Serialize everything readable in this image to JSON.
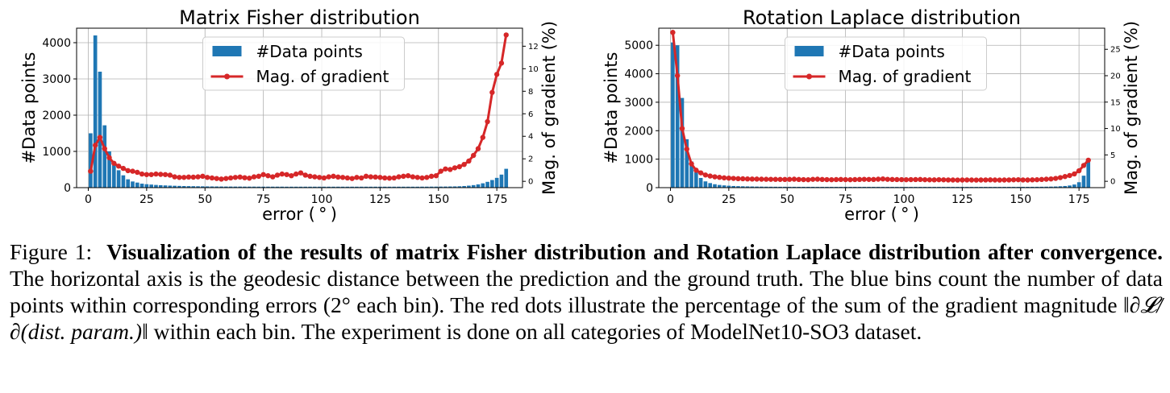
{
  "chart_data": [
    {
      "type": "bar",
      "title": "Matrix Fisher distribution",
      "xlabel": "error ( ° )",
      "ylabel": "#Data points",
      "y2label": "Mag. of gradient (%)",
      "xlim": [
        -5,
        186
      ],
      "ylim": [
        0,
        4400
      ],
      "y2lim": [
        -0.56,
        13.6
      ],
      "xticks": [
        0,
        25,
        50,
        75,
        100,
        125,
        150,
        175
      ],
      "yticks": [
        0,
        1000,
        2000,
        3000,
        4000
      ],
      "y2ticks": [
        0,
        2,
        4,
        6,
        8,
        10,
        12
      ],
      "grid": true,
      "legend_position": "top-center",
      "bar_width": 1.6,
      "colors": {
        "bars": "#1f77b4",
        "line": "#d62728"
      },
      "series": [
        {
          "name": "#Data points",
          "kind": "bar",
          "x": [
            1,
            3,
            5,
            7,
            9,
            11,
            13,
            15,
            17,
            19,
            21,
            23,
            25,
            27,
            29,
            31,
            33,
            35,
            37,
            39,
            41,
            43,
            45,
            47,
            49,
            51,
            53,
            55,
            57,
            59,
            61,
            63,
            65,
            67,
            69,
            71,
            73,
            75,
            77,
            79,
            81,
            83,
            85,
            87,
            89,
            91,
            93,
            95,
            97,
            99,
            101,
            103,
            105,
            107,
            109,
            111,
            113,
            115,
            117,
            119,
            121,
            123,
            125,
            127,
            129,
            131,
            133,
            135,
            137,
            139,
            141,
            143,
            145,
            147,
            149,
            151,
            153,
            155,
            157,
            159,
            161,
            163,
            165,
            167,
            169,
            171,
            173,
            175,
            177,
            179
          ],
          "values": [
            1500,
            4200,
            3200,
            1720,
            1000,
            700,
            480,
            340,
            230,
            170,
            140,
            110,
            95,
            85,
            75,
            68,
            62,
            56,
            52,
            48,
            44,
            42,
            40,
            38,
            36,
            34,
            33,
            32,
            31,
            30,
            30,
            29,
            29,
            28,
            28,
            28,
            27,
            27,
            27,
            27,
            27,
            27,
            26,
            26,
            26,
            26,
            26,
            26,
            26,
            26,
            26,
            26,
            26,
            26,
            26,
            26,
            26,
            26,
            26,
            26,
            26,
            26,
            26,
            26,
            26,
            26,
            26,
            26,
            26,
            26,
            26,
            27,
            27,
            28,
            28,
            29,
            30,
            32,
            34,
            38,
            45,
            55,
            70,
            90,
            120,
            160,
            210,
            270,
            360,
            520
          ]
        },
        {
          "name": "Mag. of gradient",
          "kind": "line",
          "x": [
            1,
            3,
            5,
            7,
            9,
            11,
            13,
            15,
            17,
            19,
            21,
            23,
            25,
            27,
            29,
            31,
            33,
            35,
            37,
            39,
            41,
            43,
            45,
            47,
            49,
            51,
            53,
            55,
            57,
            59,
            61,
            63,
            65,
            67,
            69,
            71,
            73,
            75,
            77,
            79,
            81,
            83,
            85,
            87,
            89,
            91,
            93,
            95,
            97,
            99,
            101,
            103,
            105,
            107,
            109,
            111,
            113,
            115,
            117,
            119,
            121,
            123,
            125,
            127,
            129,
            131,
            133,
            135,
            137,
            139,
            141,
            143,
            145,
            147,
            149,
            151,
            153,
            155,
            157,
            159,
            161,
            163,
            165,
            167,
            169,
            171,
            173,
            175,
            177,
            179
          ],
          "values": [
            0.9,
            3.2,
            3.9,
            2.9,
            2.1,
            1.6,
            1.35,
            1.15,
            0.95,
            0.9,
            0.8,
            0.65,
            0.6,
            0.6,
            0.65,
            0.62,
            0.6,
            0.55,
            0.4,
            0.35,
            0.35,
            0.38,
            0.37,
            0.4,
            0.45,
            0.35,
            0.3,
            0.25,
            0.2,
            0.25,
            0.3,
            0.35,
            0.38,
            0.32,
            0.28,
            0.4,
            0.45,
            0.6,
            0.5,
            0.4,
            0.55,
            0.65,
            0.6,
            0.5,
            0.65,
            0.75,
            0.55,
            0.45,
            0.4,
            0.35,
            0.3,
            0.4,
            0.45,
            0.38,
            0.35,
            0.3,
            0.25,
            0.35,
            0.3,
            0.45,
            0.4,
            0.38,
            0.35,
            0.3,
            0.28,
            0.3,
            0.4,
            0.45,
            0.5,
            0.4,
            0.35,
            0.3,
            0.35,
            0.45,
            0.5,
            0.9,
            1.1,
            1.05,
            1.2,
            1.3,
            1.5,
            1.8,
            2.3,
            2.9,
            3.9,
            5.3,
            7.9,
            9.5,
            10.5,
            13.0
          ]
        }
      ]
    },
    {
      "type": "bar",
      "title": "Rotation Laplace distribution",
      "xlabel": "error ( ° )",
      "ylabel": "#Data points",
      "y2label": "Mag. of gradient (%)",
      "xlim": [
        -5,
        186
      ],
      "ylim": [
        0,
        5600
      ],
      "y2lim": [
        -1.2,
        29
      ],
      "xticks": [
        0,
        25,
        50,
        75,
        100,
        125,
        150,
        175
      ],
      "yticks": [
        0,
        1000,
        2000,
        3000,
        4000,
        5000
      ],
      "y2ticks": [
        0,
        5,
        10,
        15,
        20,
        25
      ],
      "grid": true,
      "legend_position": "top-center",
      "bar_width": 1.6,
      "colors": {
        "bars": "#1f77b4",
        "line": "#d62728"
      },
      "series": [
        {
          "name": "#Data points",
          "kind": "bar",
          "x": [
            1,
            3,
            5,
            7,
            9,
            11,
            13,
            15,
            17,
            19,
            21,
            23,
            25,
            27,
            29,
            31,
            33,
            35,
            37,
            39,
            41,
            43,
            45,
            47,
            49,
            51,
            53,
            55,
            57,
            59,
            61,
            63,
            65,
            67,
            69,
            71,
            73,
            75,
            77,
            79,
            81,
            83,
            85,
            87,
            89,
            91,
            93,
            95,
            97,
            99,
            101,
            103,
            105,
            107,
            109,
            111,
            113,
            115,
            117,
            119,
            121,
            123,
            125,
            127,
            129,
            131,
            133,
            135,
            137,
            139,
            141,
            143,
            145,
            147,
            149,
            151,
            153,
            155,
            157,
            159,
            161,
            163,
            165,
            167,
            169,
            171,
            173,
            175,
            177,
            179
          ],
          "values": [
            5100,
            5000,
            3150,
            1700,
            920,
            540,
            340,
            220,
            160,
            120,
            95,
            80,
            68,
            58,
            52,
            47,
            43,
            40,
            37,
            35,
            33,
            32,
            31,
            30,
            30,
            29,
            29,
            28,
            28,
            28,
            28,
            27,
            27,
            27,
            27,
            27,
            27,
            27,
            27,
            27,
            27,
            27,
            27,
            27,
            27,
            26,
            26,
            26,
            26,
            26,
            26,
            26,
            26,
            26,
            26,
            26,
            26,
            26,
            26,
            26,
            26,
            26,
            26,
            26,
            26,
            26,
            26,
            26,
            26,
            26,
            26,
            27,
            27,
            27,
            27,
            28,
            28,
            29,
            30,
            31,
            33,
            36,
            40,
            48,
            58,
            75,
            110,
            190,
            420,
            1000
          ]
        },
        {
          "name": "Mag. of gradient",
          "kind": "line",
          "x": [
            1,
            3,
            5,
            7,
            9,
            11,
            13,
            15,
            17,
            19,
            21,
            23,
            25,
            27,
            29,
            31,
            33,
            35,
            37,
            39,
            41,
            43,
            45,
            47,
            49,
            51,
            53,
            55,
            57,
            59,
            61,
            63,
            65,
            67,
            69,
            71,
            73,
            75,
            77,
            79,
            81,
            83,
            85,
            87,
            89,
            91,
            93,
            95,
            97,
            99,
            101,
            103,
            105,
            107,
            109,
            111,
            113,
            115,
            117,
            119,
            121,
            123,
            125,
            127,
            129,
            131,
            133,
            135,
            137,
            139,
            141,
            143,
            145,
            147,
            149,
            151,
            153,
            155,
            157,
            159,
            161,
            163,
            165,
            167,
            169,
            171,
            173,
            175,
            177,
            179
          ],
          "values": [
            28.2,
            20.0,
            10.0,
            6.1,
            3.3,
            2.1,
            1.6,
            1.2,
            1.0,
            0.85,
            0.75,
            0.65,
            0.6,
            0.55,
            0.5,
            0.48,
            0.45,
            0.43,
            0.42,
            0.4,
            0.39,
            0.38,
            0.37,
            0.36,
            0.35,
            0.37,
            0.4,
            0.35,
            0.32,
            0.3,
            0.38,
            0.4,
            0.35,
            0.32,
            0.3,
            0.33,
            0.35,
            0.32,
            0.3,
            0.33,
            0.35,
            0.38,
            0.36,
            0.35,
            0.4,
            0.45,
            0.38,
            0.35,
            0.33,
            0.32,
            0.3,
            0.32,
            0.33,
            0.35,
            0.3,
            0.28,
            0.27,
            0.3,
            0.28,
            0.26,
            0.25,
            0.24,
            0.25,
            0.26,
            0.25,
            0.24,
            0.25,
            0.26,
            0.27,
            0.25,
            0.24,
            0.25,
            0.26,
            0.28,
            0.3,
            0.26,
            0.25,
            0.27,
            0.3,
            0.35,
            0.4,
            0.45,
            0.55,
            0.7,
            0.9,
            1.1,
            1.4,
            2.0,
            3.0,
            4.0
          ]
        }
      ]
    }
  ],
  "caption": {
    "figure_label": "Figure 1:",
    "title_bold": "Visualization of the results of matrix Fisher distribution and Rotation Laplace distribution after convergence.",
    "text_before_formula": "The horizontal axis is the geodesic distance between the prediction and the ground truth. The blue bins count the number of data points within corresponding errors (2° each bin). The red dots illustrate the percentage of the sum of the gradient magnitude",
    "formula": "‖∂𝓛/∂(dist. param.)‖",
    "text_after_formula": "within each bin.   The experiment is done on all categories of ModelNet10-SO3 dataset."
  }
}
